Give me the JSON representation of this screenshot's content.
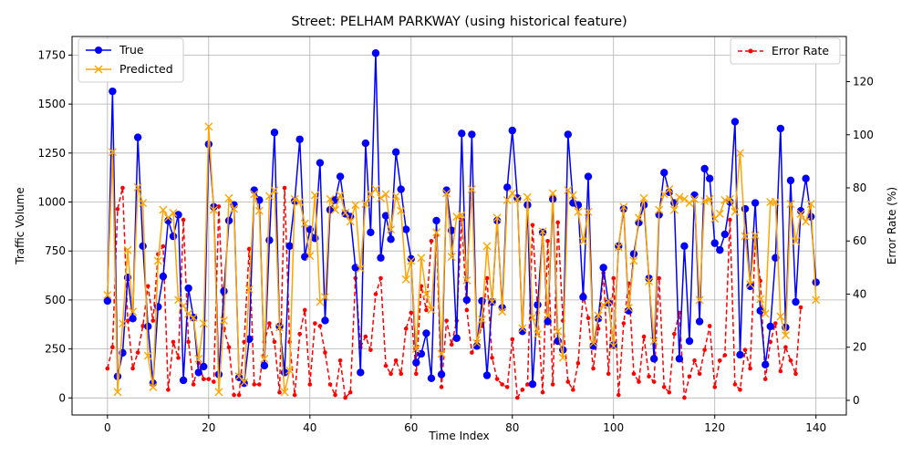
{
  "chart_data": {
    "type": "line",
    "title": "Street: PELHAM PARKWAY (using historical feature)",
    "xlabel": "Time Index",
    "ylabel": "Traffic Volume",
    "y2label": "Error Rate (%)",
    "xlim": [
      -7,
      146
    ],
    "ylim": [
      -87,
      1845
    ],
    "y2lim": [
      -5.5,
      137
    ],
    "xticks": [
      0,
      20,
      40,
      60,
      80,
      100,
      120,
      140
    ],
    "yticks": [
      0,
      250,
      500,
      750,
      1000,
      1250,
      1500,
      1750
    ],
    "y2ticks": [
      0,
      20,
      40,
      60,
      80,
      100,
      120
    ],
    "grid": true,
    "legend_left_placement": "upper-left",
    "legend_right_placement": "upper-right",
    "series": [
      {
        "name": "True",
        "axis": "left",
        "color": "#0000ff",
        "marker": "circle",
        "values": [
          495,
          1565,
          110,
          230,
          615,
          405,
          1330,
          775,
          365,
          75,
          465,
          620,
          905,
          825,
          935,
          90,
          560,
          410,
          130,
          160,
          1295,
          975,
          120,
          545,
          905,
          985,
          105,
          75,
          300,
          1060,
          1010,
          165,
          805,
          1355,
          365,
          130,
          775,
          1005,
          1320,
          720,
          860,
          815,
          1200,
          395,
          960,
          1010,
          1130,
          940,
          925,
          665,
          130,
          1300,
          845,
          1760,
          715,
          930,
          810,
          1255,
          1065,
          860,
          710,
          180,
          225,
          330,
          100,
          905,
          120,
          1060,
          855,
          305,
          1350,
          500,
          1345,
          265,
          495,
          115,
          490,
          905,
          460,
          1075,
          1365,
          1020,
          340,
          985,
          70,
          475,
          845,
          390,
          1015,
          290,
          245,
          1345,
          995,
          985,
          515,
          1130,
          265,
          405,
          665,
          485,
          270,
          775,
          965,
          445,
          735,
          895,
          985,
          610,
          200,
          935,
          1150,
          1050,
          995,
          200,
          775,
          290,
          1035,
          390,
          1170,
          1120,
          790,
          755,
          835,
          1000,
          1410,
          220,
          965,
          570,
          995,
          445,
          170,
          365,
          715,
          1375,
          360,
          1110,
          490,
          955,
          1120,
          925,
          590
        ]
      },
      {
        "name": "Predicted",
        "axis": "left",
        "color": "#ffa500",
        "marker": "x",
        "values": [
          525,
          1255,
          30,
          380,
          755,
          440,
          1075,
          995,
          215,
          55,
          700,
          960,
          920,
          945,
          500,
          470,
          430,
          410,
          200,
          380,
          1385,
          960,
          30,
          395,
          1020,
          965,
          110,
          80,
          555,
          1040,
          955,
          200,
          1030,
          1060,
          360,
          30,
          140,
          1015,
          1000,
          890,
          725,
          1035,
          490,
          515,
          1015,
          960,
          1035,
          945,
          900,
          985,
          660,
          990,
          1040,
          1065,
          1020,
          1040,
          860,
          1030,
          955,
          605,
          700,
          250,
          715,
          530,
          450,
          845,
          225,
          1045,
          720,
          925,
          935,
          600,
          1065,
          280,
          400,
          775,
          490,
          920,
          440,
          1010,
          1045,
          1015,
          355,
          1025,
          410,
          325,
          850,
          420,
          1045,
          340,
          205,
          1060,
          1035,
          950,
          800,
          950,
          280,
          420,
          475,
          495,
          265,
          770,
          975,
          460,
          700,
          920,
          1020,
          595,
          290,
          960,
          1040,
          1065,
          960,
          1025,
          1015,
          995,
          1015,
          500,
          1005,
          1015,
          915,
          940,
          1010,
          1015,
          950,
          1250,
          825,
          580,
          830,
          505,
          430,
          1000,
          1000,
          415,
          320,
          990,
          800,
          940,
          900,
          990,
          500
        ]
      },
      {
        "name": "Error Rate",
        "axis": "right",
        "color": "#ff0000",
        "marker": "dot",
        "linestyle": "dashed",
        "values": [
          12,
          20,
          72,
          80,
          30,
          12,
          18,
          28,
          43,
          30,
          55,
          58,
          4,
          22,
          16,
          68,
          22,
          6,
          14,
          8,
          8,
          7,
          73,
          27,
          20,
          2,
          2,
          22,
          57,
          6,
          6,
          22,
          29,
          22,
          3,
          80,
          22,
          2,
          25,
          34,
          6,
          29,
          28,
          18,
          6,
          2,
          15,
          1,
          3,
          46,
          20,
          24,
          19,
          40,
          46,
          13,
          10,
          15,
          10,
          27,
          33,
          10,
          43,
          34,
          60,
          62,
          5,
          30,
          21,
          30,
          68,
          34,
          18,
          22,
          28,
          46,
          16,
          8,
          6,
          5,
          23,
          1,
          4,
          6,
          66,
          33,
          3,
          60,
          6,
          67,
          30,
          7,
          4,
          14,
          40,
          31,
          12,
          27,
          48,
          10,
          46,
          2,
          29,
          44,
          10,
          7,
          24,
          9,
          7,
          46,
          5,
          3,
          25,
          33,
          1,
          9,
          15,
          10,
          19,
          28,
          5,
          15,
          17,
          68,
          6,
          4,
          19,
          12,
          60,
          45,
          8,
          22,
          29,
          11,
          20,
          15,
          10,
          35
        ]
      }
    ]
  }
}
